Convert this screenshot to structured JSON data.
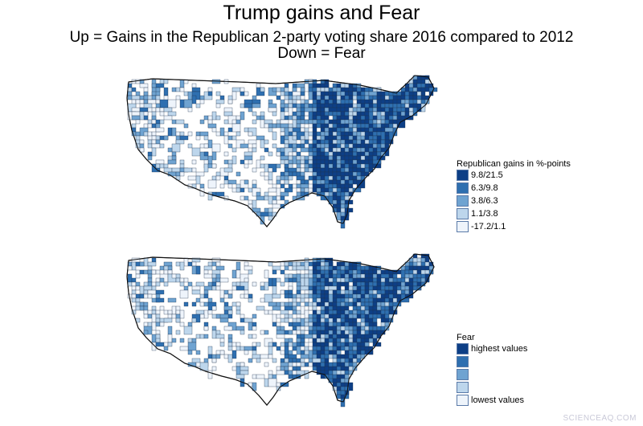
{
  "title": "Trump gains and Fear",
  "subtitle_line1": "Up = Gains in the Republican 2-party voting share 2016 compared to 2012",
  "subtitle_line2": "Down = Fear",
  "palette": [
    "#eef4fb",
    "#bdd6ec",
    "#6fa3d1",
    "#2e6fb0",
    "#0d3f86"
  ],
  "maps": [
    {
      "legend_title": "Republican gains in %-points",
      "legend_labels": [
        "9.8/21.5",
        "6.3/9.8",
        "3.8/6.3",
        "1.1/3.8",
        "-17.2/1.1"
      ]
    },
    {
      "legend_title": "Fear",
      "legend_labels": [
        "highest values",
        "",
        "",
        "",
        "lowest values"
      ]
    }
  ],
  "watermark": "SCIENCEAQ.COM"
}
